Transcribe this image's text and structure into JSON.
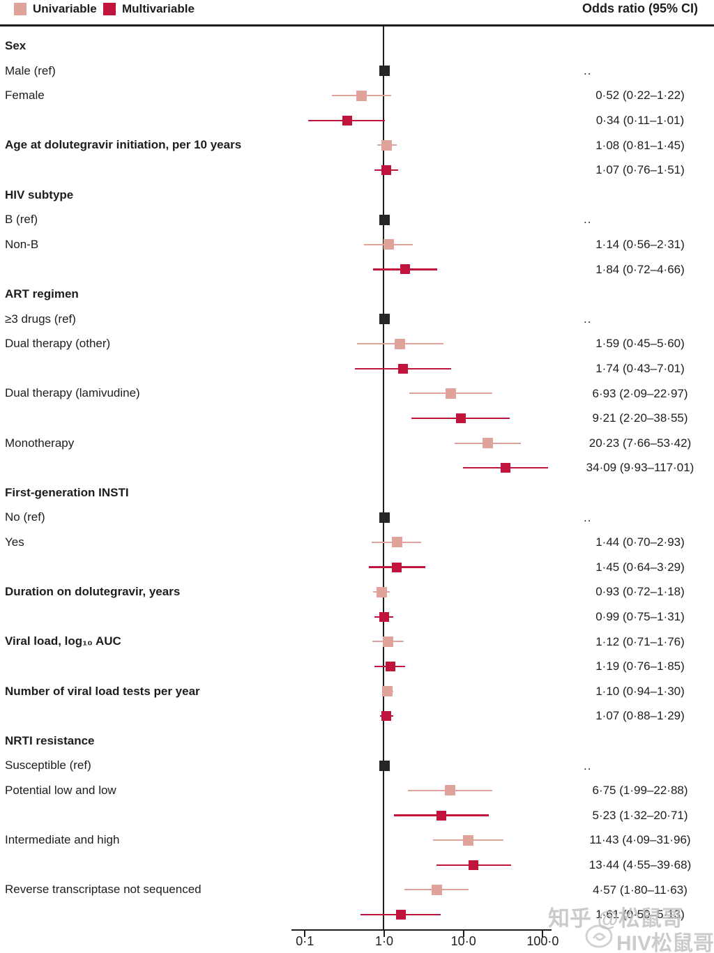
{
  "header": {
    "legend": [
      {
        "label": "Univariable",
        "series": "univariable"
      },
      {
        "label": "Multivariable",
        "series": "multivariable"
      }
    ],
    "odds_ratio_label": "Odds ratio (95% CI)"
  },
  "colors": {
    "univariable": "#dfa39c",
    "multivariable": "#c0143c",
    "reference": "#262626",
    "axis": "#1d1d1b",
    "watermark": "#bfbfbf"
  },
  "chart_data": {
    "type": "forest",
    "title": "",
    "xlabel": "",
    "x_axis": {
      "scale": "log10",
      "ticks": [
        0.1,
        1.0,
        10.0,
        100.0
      ],
      "tick_labels": [
        "0·1",
        "1·0",
        "10·0",
        "100·0"
      ],
      "reference_line": 1.0
    },
    "value_column_header": "Odds ratio (95% CI)",
    "rows": [
      {
        "label": "Sex",
        "bold": true,
        "series": null,
        "text": null
      },
      {
        "label": "Male (ref)",
        "bold": false,
        "series": "ref",
        "or": 1.0,
        "lo": null,
        "hi": null,
        "text": ".."
      },
      {
        "label": "Female",
        "bold": false,
        "series": "uni",
        "or": 0.52,
        "lo": 0.22,
        "hi": 1.22,
        "text": "0·52 (0·22–1·22)"
      },
      {
        "label": null,
        "bold": false,
        "series": "multi",
        "or": 0.34,
        "lo": 0.11,
        "hi": 1.01,
        "text": "0·34 (0·11–1·01)"
      },
      {
        "label": "Age at dolutegravir initiation, per 10 years",
        "bold": true,
        "series": "uni",
        "or": 1.08,
        "lo": 0.81,
        "hi": 1.45,
        "text": "1·08 (0·81–1·45)"
      },
      {
        "label": null,
        "bold": false,
        "series": "multi",
        "or": 1.07,
        "lo": 0.76,
        "hi": 1.51,
        "text": "1·07 (0·76–1·51)"
      },
      {
        "label": "HIV subtype",
        "bold": true,
        "series": null,
        "text": null
      },
      {
        "label": "B (ref)",
        "bold": false,
        "series": "ref",
        "or": 1.0,
        "lo": null,
        "hi": null,
        "text": ".."
      },
      {
        "label": "Non-B",
        "bold": false,
        "series": "uni",
        "or": 1.14,
        "lo": 0.56,
        "hi": 2.31,
        "text": "1·14 (0·56–2·31)"
      },
      {
        "label": null,
        "bold": false,
        "series": "multi",
        "or": 1.84,
        "lo": 0.72,
        "hi": 4.66,
        "text": "1·84 (0·72–4·66)"
      },
      {
        "label": "ART regimen",
        "bold": true,
        "series": null,
        "text": null
      },
      {
        "label": "≥3 drugs (ref)",
        "bold": false,
        "series": "ref",
        "or": 1.0,
        "lo": null,
        "hi": null,
        "text": ".."
      },
      {
        "label": "Dual therapy (other)",
        "bold": false,
        "series": "uni",
        "or": 1.59,
        "lo": 0.45,
        "hi": 5.6,
        "text": "1·59 (0·45–5·60)"
      },
      {
        "label": null,
        "bold": false,
        "series": "multi",
        "or": 1.74,
        "lo": 0.43,
        "hi": 7.01,
        "text": "1·74 (0·43–7·01)"
      },
      {
        "label": "Dual therapy (lamivudine)",
        "bold": false,
        "series": "uni",
        "or": 6.93,
        "lo": 2.09,
        "hi": 22.97,
        "text": "6·93 (2·09–22·97)"
      },
      {
        "label": null,
        "bold": false,
        "series": "multi",
        "or": 9.21,
        "lo": 2.2,
        "hi": 38.55,
        "text": "9·21 (2·20–38·55)"
      },
      {
        "label": "Monotherapy",
        "bold": false,
        "series": "uni",
        "or": 20.23,
        "lo": 7.66,
        "hi": 53.42,
        "text": "20·23 (7·66–53·42)"
      },
      {
        "label": null,
        "bold": false,
        "series": "multi",
        "or": 34.09,
        "lo": 9.93,
        "hi": 117.01,
        "text": "34·09 (9·93–117·01)"
      },
      {
        "label": "First-generation INSTI",
        "bold": true,
        "series": null,
        "text": null
      },
      {
        "label": "No (ref)",
        "bold": false,
        "series": "ref",
        "or": 1.0,
        "lo": null,
        "hi": null,
        "text": ".."
      },
      {
        "label": "Yes",
        "bold": false,
        "series": "uni",
        "or": 1.44,
        "lo": 0.7,
        "hi": 2.93,
        "text": "1·44 (0·70–2·93)"
      },
      {
        "label": null,
        "bold": false,
        "series": "multi",
        "or": 1.45,
        "lo": 0.64,
        "hi": 3.29,
        "text": "1·45 (0·64–3·29)"
      },
      {
        "label": "Duration on dolutegravir, years",
        "bold": true,
        "series": "uni",
        "or": 0.93,
        "lo": 0.72,
        "hi": 1.18,
        "text": "0·93 (0·72–1·18)"
      },
      {
        "label": null,
        "bold": false,
        "series": "multi",
        "or": 0.99,
        "lo": 0.75,
        "hi": 1.31,
        "text": "0·99 (0·75–1·31)"
      },
      {
        "label": "Viral load, log₁₀ AUC",
        "bold": true,
        "series": "uni",
        "or": 1.12,
        "lo": 0.71,
        "hi": 1.76,
        "text": "1·12 (0·71–1·76)"
      },
      {
        "label": null,
        "bold": false,
        "series": "multi",
        "or": 1.19,
        "lo": 0.76,
        "hi": 1.85,
        "text": "1·19 (0·76–1·85)"
      },
      {
        "label": "Number of viral load tests per year",
        "bold": true,
        "series": "uni",
        "or": 1.1,
        "lo": 0.94,
        "hi": 1.3,
        "text": "1·10 (0·94–1·30)"
      },
      {
        "label": null,
        "bold": false,
        "series": "multi",
        "or": 1.07,
        "lo": 0.88,
        "hi": 1.29,
        "text": "1·07 (0·88–1·29)"
      },
      {
        "label": "NRTI resistance",
        "bold": true,
        "series": null,
        "text": null
      },
      {
        "label": "Susceptible (ref)",
        "bold": false,
        "series": "ref",
        "or": 1.0,
        "lo": null,
        "hi": null,
        "text": ".."
      },
      {
        "label": "Potential low and low",
        "bold": false,
        "series": "uni",
        "or": 6.75,
        "lo": 1.99,
        "hi": 22.88,
        "text": "6·75 (1·99–22·88)"
      },
      {
        "label": null,
        "bold": false,
        "series": "multi",
        "or": 5.23,
        "lo": 1.32,
        "hi": 20.71,
        "text": "5·23 (1·32–20·71)"
      },
      {
        "label": "Intermediate and high",
        "bold": false,
        "series": "uni",
        "or": 11.43,
        "lo": 4.09,
        "hi": 31.96,
        "text": "11·43 (4·09–31·96)"
      },
      {
        "label": null,
        "bold": false,
        "series": "multi",
        "or": 13.44,
        "lo": 4.55,
        "hi": 39.68,
        "text": "13·44 (4·55–39·68)"
      },
      {
        "label": "Reverse transcriptase not sequenced",
        "bold": false,
        "series": "uni",
        "or": 4.57,
        "lo": 1.8,
        "hi": 11.63,
        "text": "4·57 (1·80–11·63)"
      },
      {
        "label": null,
        "bold": false,
        "series": "multi",
        "or": 1.61,
        "lo": 0.5,
        "hi": 5.13,
        "text": "1·61 (0·50–5·13)"
      }
    ]
  },
  "watermark": {
    "line1": "知乎 @松鼠哥",
    "line2": "HIV松鼠哥"
  }
}
